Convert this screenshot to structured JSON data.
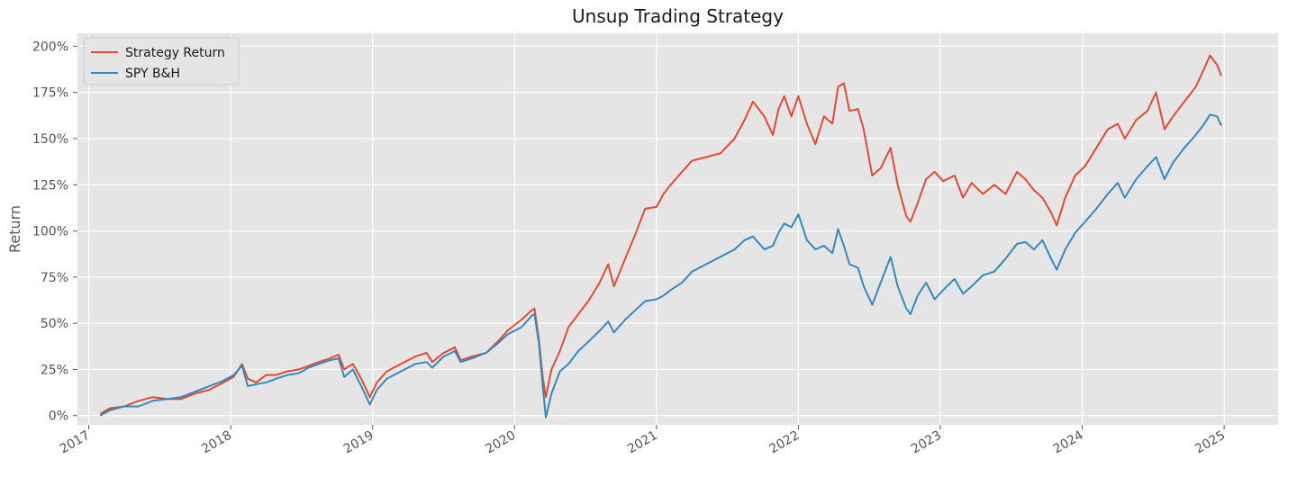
{
  "chart_data": {
    "type": "line",
    "title": "Unsup Trading Strategy",
    "xlabel": "",
    "ylabel": "Return",
    "xlim": [
      2016.92,
      2025.38
    ],
    "ylim": [
      -0.05,
      2.07
    ],
    "grid": true,
    "legend_position": "top-left",
    "yticks": [
      0,
      0.25,
      0.5,
      0.75,
      1.0,
      1.25,
      1.5,
      1.75,
      2.0
    ],
    "ytick_labels": [
      "0%",
      "25%",
      "50%",
      "75%",
      "100%",
      "125%",
      "150%",
      "175%",
      "200%"
    ],
    "xticks": [
      2017,
      2018,
      2019,
      2020,
      2021,
      2022,
      2023,
      2024,
      2025
    ],
    "xtick_labels": [
      "2017",
      "2018",
      "2019",
      "2020",
      "2021",
      "2022",
      "2023",
      "2024",
      "2025"
    ],
    "colors": {
      "background": "#e5e5e5",
      "grid": "#ffffff"
    },
    "series": [
      {
        "name": "Strategy Return",
        "color": "#e24a33",
        "points": [
          [
            2017.08,
            0.01
          ],
          [
            2017.15,
            0.04
          ],
          [
            2017.25,
            0.05
          ],
          [
            2017.35,
            0.08
          ],
          [
            2017.45,
            0.1
          ],
          [
            2017.55,
            0.09
          ],
          [
            2017.65,
            0.09
          ],
          [
            2017.75,
            0.12
          ],
          [
            2017.85,
            0.14
          ],
          [
            2017.95,
            0.18
          ],
          [
            2018.02,
            0.21
          ],
          [
            2018.08,
            0.28
          ],
          [
            2018.12,
            0.2
          ],
          [
            2018.18,
            0.18
          ],
          [
            2018.25,
            0.22
          ],
          [
            2018.32,
            0.22
          ],
          [
            2018.4,
            0.24
          ],
          [
            2018.48,
            0.25
          ],
          [
            2018.55,
            0.27
          ],
          [
            2018.62,
            0.29
          ],
          [
            2018.7,
            0.31
          ],
          [
            2018.76,
            0.33
          ],
          [
            2018.8,
            0.25
          ],
          [
            2018.86,
            0.28
          ],
          [
            2018.92,
            0.2
          ],
          [
            2018.98,
            0.1
          ],
          [
            2019.03,
            0.18
          ],
          [
            2019.1,
            0.24
          ],
          [
            2019.2,
            0.28
          ],
          [
            2019.3,
            0.32
          ],
          [
            2019.38,
            0.34
          ],
          [
            2019.42,
            0.29
          ],
          [
            2019.5,
            0.34
          ],
          [
            2019.58,
            0.37
          ],
          [
            2019.62,
            0.3
          ],
          [
            2019.7,
            0.32
          ],
          [
            2019.8,
            0.34
          ],
          [
            2019.88,
            0.4
          ],
          [
            2019.95,
            0.46
          ],
          [
            2020.05,
            0.52
          ],
          [
            2020.12,
            0.57
          ],
          [
            2020.14,
            0.58
          ],
          [
            2020.17,
            0.42
          ],
          [
            2020.2,
            0.2
          ],
          [
            2020.22,
            0.1
          ],
          [
            2020.26,
            0.25
          ],
          [
            2020.32,
            0.35
          ],
          [
            2020.38,
            0.48
          ],
          [
            2020.45,
            0.55
          ],
          [
            2020.52,
            0.62
          ],
          [
            2020.6,
            0.72
          ],
          [
            2020.66,
            0.82
          ],
          [
            2020.7,
            0.7
          ],
          [
            2020.78,
            0.85
          ],
          [
            2020.85,
            0.98
          ],
          [
            2020.92,
            1.12
          ],
          [
            2021.0,
            1.13
          ],
          [
            2021.05,
            1.2
          ],
          [
            2021.1,
            1.25
          ],
          [
            2021.18,
            1.32
          ],
          [
            2021.25,
            1.38
          ],
          [
            2021.35,
            1.4
          ],
          [
            2021.45,
            1.42
          ],
          [
            2021.55,
            1.5
          ],
          [
            2021.62,
            1.6
          ],
          [
            2021.68,
            1.7
          ],
          [
            2021.76,
            1.62
          ],
          [
            2021.82,
            1.52
          ],
          [
            2021.86,
            1.66
          ],
          [
            2021.9,
            1.73
          ],
          [
            2021.95,
            1.62
          ],
          [
            2022.0,
            1.73
          ],
          [
            2022.06,
            1.58
          ],
          [
            2022.12,
            1.47
          ],
          [
            2022.18,
            1.62
          ],
          [
            2022.24,
            1.58
          ],
          [
            2022.28,
            1.78
          ],
          [
            2022.32,
            1.8
          ],
          [
            2022.36,
            1.65
          ],
          [
            2022.42,
            1.66
          ],
          [
            2022.46,
            1.55
          ],
          [
            2022.52,
            1.3
          ],
          [
            2022.58,
            1.34
          ],
          [
            2022.65,
            1.45
          ],
          [
            2022.7,
            1.25
          ],
          [
            2022.76,
            1.08
          ],
          [
            2022.79,
            1.05
          ],
          [
            2022.84,
            1.15
          ],
          [
            2022.9,
            1.28
          ],
          [
            2022.96,
            1.32
          ],
          [
            2023.02,
            1.27
          ],
          [
            2023.1,
            1.3
          ],
          [
            2023.16,
            1.18
          ],
          [
            2023.22,
            1.26
          ],
          [
            2023.3,
            1.2
          ],
          [
            2023.38,
            1.25
          ],
          [
            2023.46,
            1.2
          ],
          [
            2023.54,
            1.32
          ],
          [
            2023.6,
            1.28
          ],
          [
            2023.66,
            1.22
          ],
          [
            2023.72,
            1.18
          ],
          [
            2023.78,
            1.1
          ],
          [
            2023.82,
            1.03
          ],
          [
            2023.88,
            1.18
          ],
          [
            2023.95,
            1.3
          ],
          [
            2024.02,
            1.35
          ],
          [
            2024.1,
            1.45
          ],
          [
            2024.18,
            1.55
          ],
          [
            2024.25,
            1.58
          ],
          [
            2024.3,
            1.5
          ],
          [
            2024.38,
            1.6
          ],
          [
            2024.46,
            1.65
          ],
          [
            2024.52,
            1.75
          ],
          [
            2024.58,
            1.55
          ],
          [
            2024.64,
            1.62
          ],
          [
            2024.72,
            1.7
          ],
          [
            2024.8,
            1.78
          ],
          [
            2024.86,
            1.88
          ],
          [
            2024.9,
            1.95
          ],
          [
            2024.95,
            1.9
          ],
          [
            2024.98,
            1.84
          ]
        ]
      },
      {
        "name": "SPY B&H",
        "color": "#348abd",
        "points": [
          [
            2017.08,
            0.0
          ],
          [
            2017.15,
            0.03
          ],
          [
            2017.25,
            0.05
          ],
          [
            2017.35,
            0.05
          ],
          [
            2017.45,
            0.08
          ],
          [
            2017.55,
            0.09
          ],
          [
            2017.65,
            0.1
          ],
          [
            2017.75,
            0.13
          ],
          [
            2017.85,
            0.16
          ],
          [
            2017.95,
            0.19
          ],
          [
            2018.02,
            0.22
          ],
          [
            2018.08,
            0.27
          ],
          [
            2018.12,
            0.16
          ],
          [
            2018.18,
            0.17
          ],
          [
            2018.25,
            0.18
          ],
          [
            2018.32,
            0.2
          ],
          [
            2018.4,
            0.22
          ],
          [
            2018.48,
            0.23
          ],
          [
            2018.55,
            0.26
          ],
          [
            2018.62,
            0.28
          ],
          [
            2018.7,
            0.3
          ],
          [
            2018.76,
            0.31
          ],
          [
            2018.8,
            0.21
          ],
          [
            2018.86,
            0.25
          ],
          [
            2018.92,
            0.16
          ],
          [
            2018.98,
            0.06
          ],
          [
            2019.03,
            0.14
          ],
          [
            2019.1,
            0.2
          ],
          [
            2019.2,
            0.24
          ],
          [
            2019.3,
            0.28
          ],
          [
            2019.38,
            0.29
          ],
          [
            2019.42,
            0.26
          ],
          [
            2019.5,
            0.32
          ],
          [
            2019.58,
            0.35
          ],
          [
            2019.62,
            0.29
          ],
          [
            2019.7,
            0.31
          ],
          [
            2019.8,
            0.34
          ],
          [
            2019.88,
            0.39
          ],
          [
            2019.95,
            0.44
          ],
          [
            2020.05,
            0.48
          ],
          [
            2020.12,
            0.54
          ],
          [
            2020.14,
            0.55
          ],
          [
            2020.17,
            0.4
          ],
          [
            2020.2,
            0.15
          ],
          [
            2020.22,
            -0.01
          ],
          [
            2020.26,
            0.12
          ],
          [
            2020.32,
            0.24
          ],
          [
            2020.38,
            0.28
          ],
          [
            2020.45,
            0.35
          ],
          [
            2020.52,
            0.4
          ],
          [
            2020.6,
            0.46
          ],
          [
            2020.66,
            0.51
          ],
          [
            2020.7,
            0.45
          ],
          [
            2020.78,
            0.52
          ],
          [
            2020.85,
            0.57
          ],
          [
            2020.92,
            0.62
          ],
          [
            2021.0,
            0.63
          ],
          [
            2021.05,
            0.65
          ],
          [
            2021.1,
            0.68
          ],
          [
            2021.18,
            0.72
          ],
          [
            2021.25,
            0.78
          ],
          [
            2021.35,
            0.82
          ],
          [
            2021.45,
            0.86
          ],
          [
            2021.55,
            0.9
          ],
          [
            2021.62,
            0.95
          ],
          [
            2021.68,
            0.97
          ],
          [
            2021.76,
            0.9
          ],
          [
            2021.82,
            0.92
          ],
          [
            2021.86,
            0.99
          ],
          [
            2021.9,
            1.04
          ],
          [
            2021.95,
            1.02
          ],
          [
            2022.0,
            1.09
          ],
          [
            2022.06,
            0.95
          ],
          [
            2022.12,
            0.9
          ],
          [
            2022.18,
            0.92
          ],
          [
            2022.24,
            0.88
          ],
          [
            2022.28,
            1.01
          ],
          [
            2022.32,
            0.92
          ],
          [
            2022.36,
            0.82
          ],
          [
            2022.42,
            0.8
          ],
          [
            2022.46,
            0.7
          ],
          [
            2022.52,
            0.6
          ],
          [
            2022.58,
            0.72
          ],
          [
            2022.65,
            0.86
          ],
          [
            2022.7,
            0.7
          ],
          [
            2022.76,
            0.58
          ],
          [
            2022.79,
            0.55
          ],
          [
            2022.84,
            0.65
          ],
          [
            2022.9,
            0.72
          ],
          [
            2022.96,
            0.63
          ],
          [
            2023.02,
            0.68
          ],
          [
            2023.1,
            0.74
          ],
          [
            2023.16,
            0.66
          ],
          [
            2023.22,
            0.7
          ],
          [
            2023.3,
            0.76
          ],
          [
            2023.38,
            0.78
          ],
          [
            2023.46,
            0.85
          ],
          [
            2023.54,
            0.93
          ],
          [
            2023.6,
            0.94
          ],
          [
            2023.66,
            0.9
          ],
          [
            2023.72,
            0.95
          ],
          [
            2023.78,
            0.85
          ],
          [
            2023.82,
            0.79
          ],
          [
            2023.88,
            0.9
          ],
          [
            2023.95,
            0.99
          ],
          [
            2024.02,
            1.05
          ],
          [
            2024.1,
            1.12
          ],
          [
            2024.18,
            1.2
          ],
          [
            2024.25,
            1.26
          ],
          [
            2024.3,
            1.18
          ],
          [
            2024.38,
            1.28
          ],
          [
            2024.46,
            1.35
          ],
          [
            2024.52,
            1.4
          ],
          [
            2024.58,
            1.28
          ],
          [
            2024.64,
            1.37
          ],
          [
            2024.72,
            1.45
          ],
          [
            2024.8,
            1.52
          ],
          [
            2024.86,
            1.58
          ],
          [
            2024.9,
            1.63
          ],
          [
            2024.95,
            1.62
          ],
          [
            2024.98,
            1.57
          ]
        ]
      }
    ]
  }
}
